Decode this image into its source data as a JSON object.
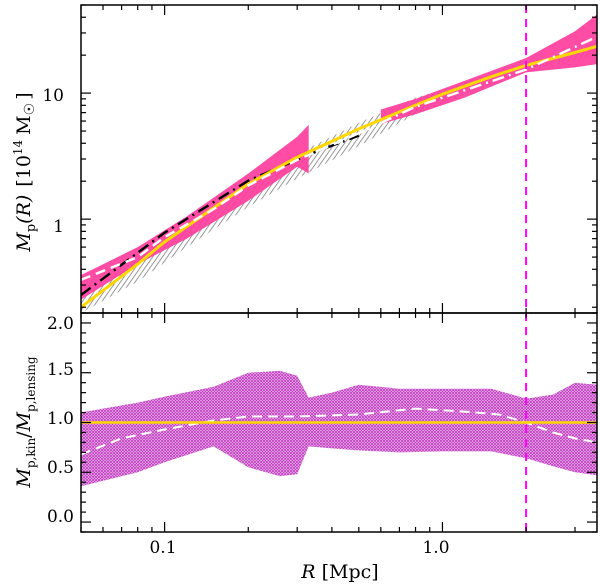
{
  "chart_data": [
    {
      "type": "line",
      "panel": "top",
      "xscale": "log",
      "yscale": "log",
      "xlim": [
        0.05,
        3.6
      ],
      "ylim": [
        0.18,
        50
      ],
      "ylabel": "M_p(R) [10^14 M_sun]",
      "ylabel_parts": {
        "m": "M",
        "sub": "p",
        "arg": "(R)",
        "bracket_open": "[10",
        "exp": "14",
        "unit": "M",
        "bracket_close": "]",
        "sun_symbol": "☉"
      },
      "yticks": [
        {
          "value": 1,
          "label": "1"
        },
        {
          "value": 10,
          "label": "10"
        }
      ],
      "xticks": [
        0.1,
        1.0
      ],
      "vline": {
        "x": 2.0,
        "color": "#ff00ff",
        "style": "dashed"
      },
      "bands": [
        {
          "name": "grey-hatched band",
          "color": "#8a8a8a",
          "x": [
            0.05,
            0.08,
            0.12,
            0.2,
            0.3,
            0.5,
            0.8,
            1.2,
            2.0,
            3.6
          ],
          "lower": [
            0.18,
            0.32,
            0.6,
            1.25,
            2.1,
            3.8,
            6.8,
            9.8,
            15.0,
            20.0
          ],
          "upper": [
            0.24,
            0.48,
            0.92,
            1.95,
            3.3,
            5.8,
            9.2,
            12.0,
            16.7,
            24.0
          ]
        },
        {
          "name": "magenta band (inner)",
          "color": "#ff3e9e",
          "x": [
            0.05,
            0.08,
            0.12,
            0.2,
            0.3,
            0.33
          ],
          "lower": [
            0.23,
            0.44,
            0.7,
            1.4,
            2.6,
            2.3
          ],
          "upper": [
            0.36,
            0.6,
            1.05,
            2.3,
            4.5,
            5.6
          ]
        },
        {
          "name": "magenta band (outer)",
          "color": "#ff3e9e",
          "x": [
            0.6,
            0.8,
            1.2,
            2.0,
            3.0,
            3.6
          ],
          "lower": [
            5.7,
            6.8,
            9.2,
            14.6,
            16.0,
            17.0
          ],
          "upper": [
            7.4,
            9.0,
            12.5,
            19.0,
            31.0,
            42.0
          ]
        }
      ],
      "series": [
        {
          "name": "black dash-dot",
          "color": "#000000",
          "style": "dashdot",
          "x": [
            0.05,
            0.1,
            0.2,
            0.35,
            0.5
          ],
          "y": [
            0.25,
            0.78,
            2.02,
            3.42,
            4.6
          ]
        },
        {
          "name": "white dashed",
          "color": "#ffffff",
          "style": "dashed",
          "x": [
            0.05,
            0.08,
            0.1,
            0.15,
            0.2,
            0.3,
            0.5
          ],
          "y": [
            0.33,
            0.5,
            0.72,
            1.2,
            1.85,
            2.95,
            4.8
          ]
        },
        {
          "name": "white dash-dot",
          "color": "#ffffff",
          "style": "dashdot",
          "x": [
            0.5,
            0.8,
            1.2,
            2.0,
            3.0,
            3.6
          ],
          "y": [
            4.8,
            7.8,
            10.5,
            15.4,
            23.2,
            28.0
          ]
        },
        {
          "name": "yellow solid",
          "color": "#ffd700",
          "style": "solid",
          "x": [
            0.05,
            0.08,
            0.1,
            0.2,
            0.3,
            0.5,
            0.8,
            1.0,
            1.5,
            2.0,
            3.0,
            3.6
          ],
          "y": [
            0.2,
            0.44,
            0.66,
            1.9,
            3.1,
            5.2,
            8.0,
            9.8,
            13.5,
            16.6,
            21.0,
            23.5
          ]
        }
      ]
    },
    {
      "type": "line",
      "panel": "bottom",
      "xscale": "log",
      "yscale": "linear",
      "xlim": [
        0.05,
        3.6
      ],
      "ylim": [
        -0.1,
        2.1
      ],
      "ylabel": "M_p,kin / M_p,lensing",
      "ylabel_parts": {
        "m1": "M",
        "sub1": "p,kin",
        "slash": "/",
        "m2": "M",
        "sub2": "p,lensing"
      },
      "xlabel": "R [Mpc]",
      "xlabel_parts": {
        "var": "R",
        "unit": "[Mpc]"
      },
      "yticks": [
        {
          "value": 0.0,
          "label": "0.0"
        },
        {
          "value": 0.5,
          "label": "0.5"
        },
        {
          "value": 1.0,
          "label": "1.0"
        },
        {
          "value": 1.5,
          "label": "1.5"
        },
        {
          "value": 2.0,
          "label": "2.0"
        }
      ],
      "xticks": [
        {
          "value": 0.1,
          "label": "0.1"
        },
        {
          "value": 1.0,
          "label": "1.0"
        }
      ],
      "vline": {
        "x": 2.0,
        "color": "#ff00ff",
        "style": "dashed"
      },
      "hline": {
        "y": 1.0,
        "color": "#000000",
        "style": "dotted"
      },
      "bands": [
        {
          "name": "magenta hatched ratio band",
          "color": "#cc55cc",
          "x": [
            0.05,
            0.08,
            0.1,
            0.15,
            0.2,
            0.26,
            0.3,
            0.33,
            0.4,
            0.5,
            0.7,
            1.0,
            1.5,
            2.0,
            2.5,
            3.0,
            3.6
          ],
          "lower": [
            0.36,
            0.5,
            0.6,
            0.76,
            0.55,
            0.46,
            0.48,
            0.76,
            0.74,
            0.72,
            0.7,
            0.71,
            0.71,
            0.64,
            0.56,
            0.5,
            0.47
          ],
          "upper": [
            1.1,
            1.2,
            1.26,
            1.36,
            1.5,
            1.52,
            1.47,
            1.25,
            1.3,
            1.38,
            1.34,
            1.34,
            1.34,
            1.24,
            1.28,
            1.4,
            1.38
          ]
        }
      ],
      "series": [
        {
          "name": "white dashed ratio",
          "color": "#ffffff",
          "style": "dashed",
          "x": [
            0.05,
            0.07,
            0.1,
            0.15,
            0.2,
            0.3,
            0.5,
            0.8,
            1.2,
            1.6,
            2.0,
            2.5,
            3.0,
            3.6
          ],
          "y": [
            0.68,
            0.84,
            0.93,
            1.02,
            1.06,
            1.06,
            1.08,
            1.14,
            1.11,
            1.08,
            1.0,
            0.9,
            0.84,
            0.8
          ]
        },
        {
          "name": "yellow solid ratio",
          "color": "#ffd700",
          "style": "solid",
          "x": [
            0.05,
            3.6
          ],
          "y": [
            1.0,
            1.0
          ]
        }
      ]
    }
  ]
}
